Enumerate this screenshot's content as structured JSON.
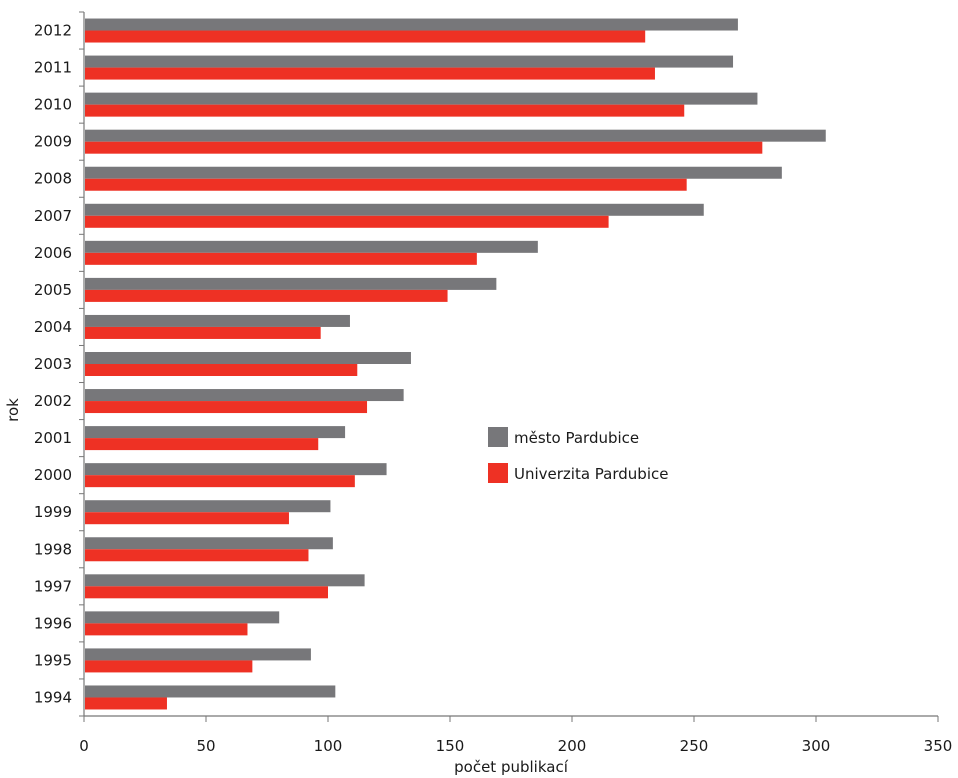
{
  "chart_data": {
    "type": "bar",
    "orientation": "horizontal",
    "title": "",
    "xlabel": "počet publikací",
    "ylabel": "rok",
    "xlim": [
      0,
      350
    ],
    "x_ticks": [
      "0",
      "50",
      "100",
      "150",
      "200",
      "250",
      "300",
      "350"
    ],
    "categories": [
      "2012",
      "2011",
      "2010",
      "2009",
      "2008",
      "2007",
      "2006",
      "2005",
      "2004",
      "2003",
      "2002",
      "2001",
      "2000",
      "1999",
      "1998",
      "1997",
      "1996",
      "1995",
      "1994"
    ],
    "series": [
      {
        "name": "město Pardubice",
        "color": "#77777a",
        "values": [
          268,
          266,
          276,
          304,
          286,
          254,
          186,
          169,
          109,
          134,
          131,
          107,
          124,
          101,
          102,
          115,
          80,
          93,
          103
        ]
      },
      {
        "name": "Univerzita Pardubice",
        "color": "#ee3124",
        "values": [
          230,
          234,
          246,
          278,
          247,
          215,
          161,
          149,
          97,
          112,
          116,
          96,
          111,
          84,
          92,
          100,
          67,
          69,
          34
        ]
      }
    ],
    "grid": false,
    "legend": {
      "position": "center-right"
    }
  }
}
